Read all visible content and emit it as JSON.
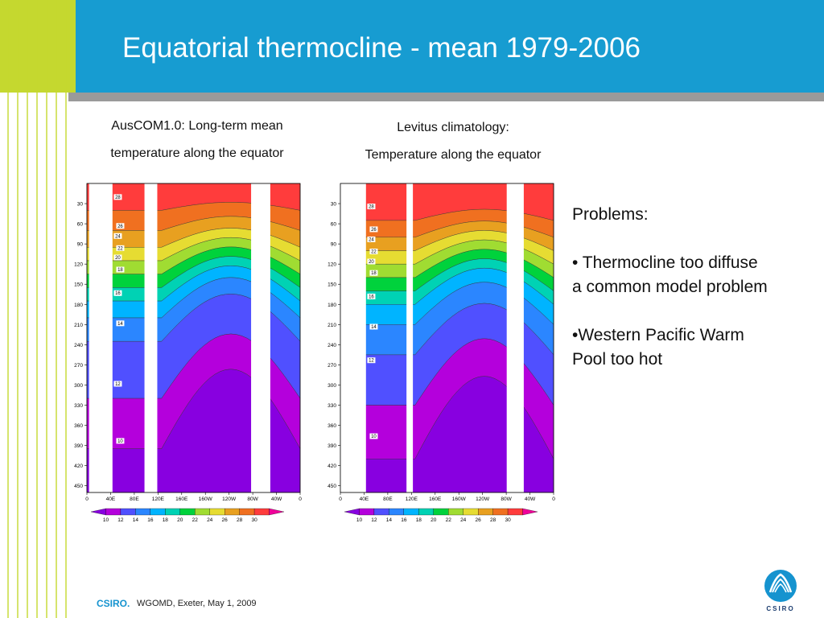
{
  "slide": {
    "title": "Equatorial thermocline - mean 1979-2006",
    "left_caption_line1": "AusCOM1.0: Long-term mean",
    "left_caption_line2": "temperature along the equator",
    "right_caption_line1": "Levitus climatology:",
    "right_caption_line2": "Temperature along the equator",
    "problems": {
      "heading": "Problems:",
      "bullet1_line1": "• Thermocline too diffuse",
      "bullet1_line2": "a common model problem",
      "bullet2_line1": "•Western Pacific Warm",
      "bullet2_line2": "Pool too hot"
    },
    "footer": {
      "org": "CSIRO.",
      "text": "WGOMD, Exeter, May 1, 2009"
    },
    "logo_text": "CSIRO"
  },
  "colors": {
    "header_blue": "#179cd1",
    "accent_green": "#c5d82f",
    "rule_gray": "#9a9a9a",
    "footer_blue": "#1593cf"
  },
  "chart_data": [
    {
      "type": "heatmap",
      "title": "AusCOM1.0: Long-term mean temperature along the equator",
      "x_ticks": [
        "0",
        "40E",
        "80E",
        "120E",
        "160E",
        "160W",
        "120W",
        "80W",
        "40W",
        "0"
      ],
      "y_ticks": [
        "30",
        "60",
        "90",
        "120",
        "150",
        "180",
        "210",
        "240",
        "270",
        "300",
        "330",
        "360",
        "390",
        "420",
        "450"
      ],
      "ylim": [
        460,
        0
      ],
      "colorbar_labels": [
        "10",
        "12",
        "14",
        "16",
        "18",
        "20",
        "22",
        "24",
        "26",
        "28",
        "30"
      ],
      "colorbar_colors": [
        "#8800e0",
        "#b400dc",
        "#5050ff",
        "#2b86ff",
        "#00b4ff",
        "#00d2b4",
        "#00d23c",
        "#a0dc32",
        "#e6dc32",
        "#e8a020",
        "#f07020",
        "#ff3c3c",
        "#f0009a"
      ],
      "contour_labels": [
        "28",
        "26",
        "24",
        "22",
        "20",
        "18",
        "16",
        "14",
        "12",
        "10"
      ]
    },
    {
      "type": "heatmap",
      "title": "Levitus climatology: Temperature along the equator",
      "x_ticks": [
        "0",
        "40E",
        "80E",
        "120E",
        "160E",
        "160W",
        "120W",
        "80W",
        "40W",
        "0"
      ],
      "y_ticks": [
        "30",
        "60",
        "90",
        "120",
        "150",
        "180",
        "210",
        "240",
        "270",
        "300",
        "330",
        "360",
        "390",
        "420",
        "450"
      ],
      "ylim": [
        460,
        0
      ],
      "colorbar_labels": [
        "10",
        "12",
        "14",
        "16",
        "18",
        "20",
        "22",
        "24",
        "26",
        "28",
        "30"
      ],
      "colorbar_colors": [
        "#8800e0",
        "#b400dc",
        "#5050ff",
        "#2b86ff",
        "#00b4ff",
        "#00d2b4",
        "#00d23c",
        "#a0dc32",
        "#e6dc32",
        "#e8a020",
        "#f07020",
        "#ff3c3c",
        "#f0009a"
      ],
      "contour_labels": [
        "28",
        "26",
        "24",
        "22",
        "20",
        "18",
        "16",
        "14",
        "12",
        "10"
      ]
    }
  ]
}
